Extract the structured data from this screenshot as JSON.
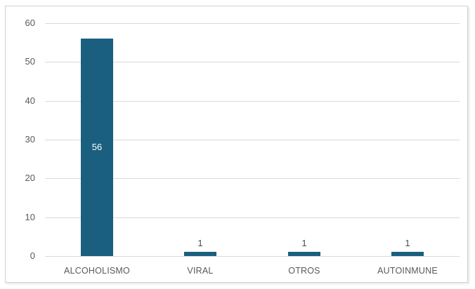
{
  "chart_data": {
    "type": "bar",
    "title": "",
    "xlabel": "",
    "ylabel": "",
    "categories": [
      "ALCOHOLISMO",
      "VIRAL",
      "OTROS",
      "AUTOINMUNE"
    ],
    "values": [
      56,
      1,
      1,
      1
    ],
    "data_labels": [
      "56",
      "1",
      "1",
      "1"
    ],
    "data_label_position": [
      "center-inside",
      "outside-end",
      "outside-end",
      "outside-end"
    ],
    "ylim": [
      0,
      60
    ],
    "yticks": [
      0,
      10,
      20,
      30,
      40,
      50,
      60
    ],
    "grid": true,
    "legend": "none",
    "colors": {
      "bar_fill": "#1A5F80",
      "gridline": "#d9d9d9",
      "axis_text": "#595959",
      "data_label_inside": "#ffffff",
      "data_label_outside": "#4a4a4a",
      "frame_border": "#d2d2d2",
      "background": "#ffffff"
    }
  }
}
